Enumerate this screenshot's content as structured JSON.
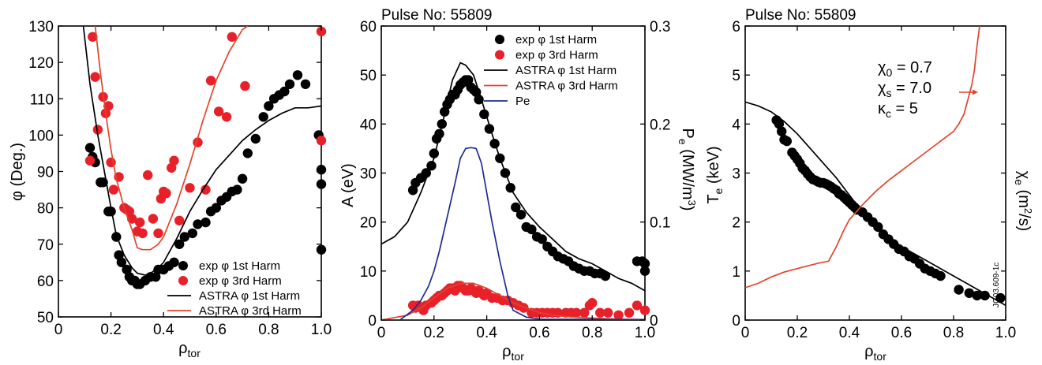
{
  "colors": {
    "black": "#000000",
    "red": "#e8202a",
    "orange_red": "#e0442c",
    "blue": "#1f2d8f"
  },
  "figure_code": "JG03.609-1c",
  "chart_data": [
    {
      "type": "scatter",
      "title": "",
      "xlabel": "ρ",
      "xlabel_sub": "tor",
      "ylabel": "φ (Deg.)",
      "xlim": [
        0,
        1.0
      ],
      "ylim": [
        50,
        130
      ],
      "xticks": [
        0,
        0.2,
        0.4,
        0.6,
        0.8,
        1.0
      ],
      "xtick_labels": [
        "0",
        "0.2",
        "0.4",
        "0.6",
        "0.8",
        "1.0"
      ],
      "yticks": [
        50,
        60,
        70,
        80,
        90,
        100,
        110,
        120,
        130
      ],
      "ytick_labels": [
        "50",
        "60",
        "70",
        "80",
        "90",
        "100",
        "110",
        "120",
        "130"
      ],
      "legend": "bottom-right",
      "series": [
        {
          "name": "exp φ 1st Harm",
          "kind": "points",
          "color": "#000000",
          "x": [
            0.12,
            0.13,
            0.14,
            0.16,
            0.17,
            0.19,
            0.2,
            0.22,
            0.23,
            0.24,
            0.26,
            0.27,
            0.28,
            0.29,
            0.3,
            0.31,
            0.33,
            0.35,
            0.37,
            0.38,
            0.4,
            0.42,
            0.44,
            0.46,
            0.48,
            0.51,
            0.53,
            0.56,
            0.58,
            0.6,
            0.62,
            0.64,
            0.66,
            0.68,
            0.7,
            0.72,
            0.75,
            0.78,
            0.8,
            0.82,
            0.84,
            0.86,
            0.88,
            0.91,
            0.94,
            0.99,
            1.0,
            1.0,
            1.0
          ],
          "y": [
            96.5,
            94,
            92.5,
            87,
            87,
            79,
            79,
            72,
            67,
            65,
            63,
            61,
            60,
            60,
            59,
            59,
            60,
            61,
            61,
            63,
            63,
            64,
            65,
            70,
            72,
            73,
            75.5,
            76,
            79,
            80,
            82,
            83,
            84.5,
            85,
            88,
            95,
            99,
            105,
            108,
            110,
            111,
            112,
            114,
            116.5,
            114,
            100,
            90.5,
            86.5,
            68.5
          ]
        },
        {
          "name": "exp φ 3rd Harm",
          "kind": "points",
          "color": "#e8202a",
          "x": [
            0.12,
            0.13,
            0.14,
            0.15,
            0.17,
            0.18,
            0.19,
            0.2,
            0.21,
            0.23,
            0.25,
            0.26,
            0.27,
            0.28,
            0.3,
            0.31,
            0.32,
            0.34,
            0.36,
            0.38,
            0.39,
            0.4,
            0.41,
            0.43,
            0.44,
            0.46,
            0.5,
            0.53,
            0.56,
            0.58,
            0.61,
            0.64,
            0.66,
            0.71,
            1.0,
            1.0
          ],
          "y": [
            93,
            127,
            116,
            101.5,
            110.5,
            106,
            108,
            92.5,
            85,
            88.5,
            80,
            79.5,
            79,
            77,
            73.5,
            76,
            73,
            89,
            77,
            73,
            82.5,
            84.5,
            84,
            91,
            93,
            76.5,
            85.5,
            98,
            85,
            115,
            106.5,
            105,
            127,
            113.5,
            128.5,
            98.5
          ]
        },
        {
          "name": "ASTRA φ 1st Harm",
          "kind": "line",
          "color": "#000000",
          "x": [
            0.095,
            0.12,
            0.15,
            0.18,
            0.2,
            0.22,
            0.25,
            0.28,
            0.3,
            0.33,
            0.35,
            0.38,
            0.4,
            0.45,
            0.5,
            0.55,
            0.6,
            0.65,
            0.7,
            0.75,
            0.8,
            0.85,
            0.9,
            0.95,
            1.0
          ],
          "y": [
            130,
            114,
            100,
            88,
            80,
            72.5,
            67,
            63.5,
            62,
            61.5,
            62,
            63.5,
            65,
            71.5,
            79,
            85,
            90.5,
            94.5,
            98.5,
            101.5,
            104,
            106,
            107.5,
            107.5,
            108
          ]
        },
        {
          "name": "ASTRA φ 3rd Harm",
          "kind": "line",
          "color": "#e0442c",
          "x": [
            0.14,
            0.16,
            0.18,
            0.2,
            0.22,
            0.25,
            0.28,
            0.3,
            0.32,
            0.35,
            0.38,
            0.4,
            0.45,
            0.5,
            0.55,
            0.6,
            0.65,
            0.7,
            0.72
          ],
          "y": [
            130,
            117,
            106,
            96,
            88,
            80,
            74,
            69,
            68.5,
            68.5,
            70,
            72,
            81,
            92,
            104,
            115,
            123,
            129,
            130
          ]
        }
      ]
    },
    {
      "type": "line",
      "title": "Pulse No: 55809",
      "xlabel": "ρ",
      "xlabel_sub": "tor",
      "ylabel": "A (eV)",
      "y2label_main": "P",
      "y2label_sub": "e",
      "y2label_rest": " (MW/m",
      "y2label_sup": "3",
      "y2label_end": ")",
      "xlim": [
        0,
        1.0
      ],
      "ylim": [
        0,
        60
      ],
      "y2lim": [
        0,
        0.3
      ],
      "xticks": [
        0,
        0.2,
        0.4,
        0.6,
        0.8,
        1.0
      ],
      "xtick_labels": [
        "0",
        "0.2",
        "0.4",
        "0.6",
        "0.8",
        "1.0"
      ],
      "yticks": [
        0,
        10,
        20,
        30,
        40,
        50,
        60
      ],
      "ytick_labels": [
        "0",
        "10",
        "20",
        "30",
        "40",
        "50",
        "60"
      ],
      "y2ticks": [
        0,
        0.1,
        0.2,
        0.3
      ],
      "y2tick_labels": [
        "0",
        "0.1",
        "0.2",
        "0.3"
      ],
      "legend": "top-right",
      "series": [
        {
          "name": "exp φ 1st Harm",
          "kind": "points",
          "color": "#000000",
          "axis": "left",
          "x": [
            0.12,
            0.13,
            0.15,
            0.17,
            0.19,
            0.2,
            0.21,
            0.22,
            0.23,
            0.24,
            0.25,
            0.26,
            0.27,
            0.28,
            0.29,
            0.3,
            0.31,
            0.32,
            0.33,
            0.34,
            0.35,
            0.36,
            0.37,
            0.39,
            0.41,
            0.43,
            0.45,
            0.47,
            0.49,
            0.51,
            0.53,
            0.55,
            0.57,
            0.59,
            0.61,
            0.63,
            0.65,
            0.67,
            0.69,
            0.71,
            0.73,
            0.75,
            0.77,
            0.79,
            0.81,
            0.83,
            0.85,
            0.97,
            0.99,
            1.0,
            1.0
          ],
          "y": [
            26.5,
            28,
            29,
            30,
            31.5,
            34,
            37,
            38,
            40,
            42.5,
            44,
            45,
            46,
            46,
            47,
            48,
            48.5,
            49,
            49,
            47.5,
            47,
            46.5,
            45,
            42,
            39,
            36,
            33,
            30,
            27,
            23,
            21.5,
            19,
            18.5,
            17,
            16.5,
            15,
            14,
            13,
            12.5,
            12,
            11,
            10.5,
            10,
            10,
            9.5,
            9.5,
            9,
            12,
            12,
            11.5,
            10
          ]
        },
        {
          "name": "exp φ 3rd Harm",
          "kind": "points",
          "color": "#e8202a",
          "axis": "left",
          "x": [
            0.12,
            0.13,
            0.14,
            0.16,
            0.17,
            0.19,
            0.2,
            0.21,
            0.22,
            0.23,
            0.24,
            0.25,
            0.26,
            0.27,
            0.28,
            0.29,
            0.3,
            0.31,
            0.32,
            0.33,
            0.34,
            0.35,
            0.36,
            0.37,
            0.38,
            0.39,
            0.4,
            0.42,
            0.44,
            0.46,
            0.48,
            0.5,
            0.52,
            0.54,
            0.57,
            0.59,
            0.61,
            0.63,
            0.65,
            0.67,
            0.7,
            0.72,
            0.74,
            0.77,
            0.79,
            0.8,
            0.83,
            0.86,
            0.9,
            0.94,
            0.97,
            1.0
          ],
          "y": [
            3,
            2.5,
            3,
            2,
            3,
            3.5,
            4,
            4.5,
            5,
            5,
            5.5,
            6,
            6.5,
            6.5,
            6,
            7,
            7,
            6.5,
            6,
            6,
            6.5,
            6,
            5.5,
            6,
            5.5,
            5,
            5.5,
            4.5,
            4.5,
            4,
            4,
            3.5,
            3,
            2.5,
            1.5,
            1.5,
            1.5,
            1.5,
            1.5,
            1.5,
            1.5,
            1.5,
            1.5,
            1.5,
            3,
            3.5,
            1.5,
            1.5,
            1,
            1.5,
            3,
            2
          ]
        },
        {
          "name": "ASTRA φ 1st Harm",
          "kind": "line",
          "color": "#000000",
          "axis": "left",
          "x": [
            0,
            0.05,
            0.1,
            0.15,
            0.2,
            0.24,
            0.27,
            0.3,
            0.32,
            0.35,
            0.38,
            0.42,
            0.45,
            0.5,
            0.55,
            0.6,
            0.65,
            0.7,
            0.75,
            0.8,
            0.85,
            0.9,
            0.95,
            1.0
          ],
          "y": [
            15.5,
            17,
            20,
            26,
            33,
            42,
            49,
            52.5,
            52,
            50,
            45,
            38,
            33,
            26,
            22,
            19,
            16.5,
            14,
            12.5,
            11.5,
            10,
            8.5,
            7.5,
            6
          ]
        },
        {
          "name": "ASTRA φ 3rd Harm",
          "kind": "line",
          "color": "#e0442c",
          "axis": "left",
          "x": [
            0,
            0.1,
            0.15,
            0.2,
            0.25,
            0.3,
            0.35,
            0.4,
            0.45,
            0.5,
            0.55,
            0.6,
            0.65,
            0.7,
            0.8,
            0.9,
            1.0
          ],
          "y": [
            0,
            1,
            2.5,
            4.5,
            6.5,
            7.5,
            7.5,
            6.5,
            5,
            3.5,
            2.5,
            1.5,
            1,
            0.7,
            0.4,
            0.2,
            0.1
          ]
        },
        {
          "name": "Pe",
          "kind": "line",
          "color": "#1f2d8f",
          "axis": "right",
          "x": [
            0.07,
            0.12,
            0.15,
            0.18,
            0.2,
            0.22,
            0.25,
            0.28,
            0.3,
            0.32,
            0.34,
            0.36,
            0.38,
            0.4,
            0.42,
            0.45,
            0.48,
            0.5,
            0.55,
            0.6,
            0.8,
            1.0
          ],
          "y": [
            0,
            0.01,
            0.02,
            0.035,
            0.05,
            0.07,
            0.105,
            0.14,
            0.165,
            0.175,
            0.176,
            0.175,
            0.16,
            0.13,
            0.1,
            0.06,
            0.025,
            0.01,
            0.003,
            0.001,
            0.0008,
            0.0005
          ]
        }
      ]
    },
    {
      "type": "line",
      "title": "Pulse No: 55809",
      "xlabel": "ρ",
      "xlabel_sub": "tor",
      "ylabel_main": "T",
      "ylabel_sub": "e",
      "ylabel_rest": " (keV)",
      "y2label_main": "χ",
      "y2label_sub": "e",
      "y2label_rest": " (m",
      "y2label_sup": "2",
      "y2label_end": "/s)",
      "xlim": [
        0,
        1.0
      ],
      "ylim": [
        0,
        6
      ],
      "xticks": [
        0,
        0.2,
        0.4,
        0.6,
        0.8,
        1.0
      ],
      "xtick_labels": [
        "0",
        "0.2",
        "0.4",
        "0.6",
        "0.8",
        "1.0"
      ],
      "yticks": [
        0,
        1,
        2,
        3,
        4,
        5,
        6
      ],
      "ytick_labels": [
        "0",
        "1",
        "2",
        "3",
        "4",
        "5",
        "6"
      ],
      "annotations": [
        {
          "main": "χ",
          "sub": "0",
          "rest": " = 0.7"
        },
        {
          "main": "χ",
          "sub": "s",
          "rest": " = 7.0"
        },
        {
          "main": "κ",
          "sub": "c",
          "rest": " = 5"
        }
      ],
      "series": [
        {
          "name": "",
          "kind": "points",
          "color": "#000000",
          "axis": "left",
          "x": [
            0.12,
            0.13,
            0.14,
            0.15,
            0.16,
            0.18,
            0.19,
            0.2,
            0.21,
            0.22,
            0.23,
            0.24,
            0.25,
            0.26,
            0.27,
            0.28,
            0.29,
            0.3,
            0.31,
            0.32,
            0.33,
            0.34,
            0.35,
            0.36,
            0.37,
            0.38,
            0.39,
            0.4,
            0.41,
            0.42,
            0.43,
            0.45,
            0.47,
            0.49,
            0.51,
            0.53,
            0.55,
            0.57,
            0.59,
            0.61,
            0.63,
            0.65,
            0.67,
            0.69,
            0.71,
            0.73,
            0.75,
            0.82,
            0.86,
            0.89,
            0.92,
            0.98
          ],
          "y": [
            4.08,
            4.0,
            3.85,
            3.68,
            3.65,
            3.42,
            3.35,
            3.28,
            3.2,
            3.1,
            3.05,
            2.98,
            2.92,
            2.87,
            2.85,
            2.82,
            2.8,
            2.8,
            2.78,
            2.75,
            2.72,
            2.68,
            2.65,
            2.58,
            2.55,
            2.5,
            2.45,
            2.4,
            2.35,
            2.3,
            2.25,
            2.2,
            2.1,
            2.0,
            1.9,
            1.75,
            1.65,
            1.55,
            1.45,
            1.4,
            1.3,
            1.25,
            1.15,
            1.05,
            1.0,
            0.95,
            0.9,
            0.62,
            0.55,
            0.5,
            0.5,
            0.45
          ]
        },
        {
          "name": "",
          "kind": "line",
          "color": "#000000",
          "axis": "left",
          "x": [
            0,
            0.05,
            0.1,
            0.15,
            0.2,
            0.25,
            0.3,
            0.35,
            0.4,
            0.45,
            0.5,
            0.55,
            0.6,
            0.65,
            0.7,
            0.75,
            0.8,
            0.85,
            0.9,
            0.95,
            1.0
          ],
          "y": [
            4.45,
            4.37,
            4.25,
            4.05,
            3.8,
            3.5,
            3.2,
            2.9,
            2.55,
            2.2,
            1.95,
            1.7,
            1.5,
            1.35,
            1.2,
            1.05,
            0.9,
            0.75,
            0.6,
            0.45,
            0.3
          ]
        },
        {
          "name": "",
          "kind": "line",
          "color": "#e0442c",
          "axis": "left",
          "x": [
            0,
            0.05,
            0.1,
            0.15,
            0.2,
            0.25,
            0.28,
            0.3,
            0.32,
            0.35,
            0.38,
            0.4,
            0.45,
            0.5,
            0.55,
            0.6,
            0.65,
            0.7,
            0.75,
            0.8,
            0.82,
            0.84,
            0.85,
            0.86,
            0.87,
            0.88,
            0.89,
            0.9
          ],
          "y": [
            0.66,
            0.75,
            0.88,
            0.98,
            1.05,
            1.12,
            1.16,
            1.18,
            1.2,
            1.5,
            1.85,
            2.05,
            2.35,
            2.62,
            2.85,
            3.05,
            3.25,
            3.45,
            3.65,
            3.85,
            4.0,
            4.2,
            4.4,
            4.6,
            4.8,
            5.1,
            5.6,
            6.0
          ]
        }
      ]
    }
  ]
}
